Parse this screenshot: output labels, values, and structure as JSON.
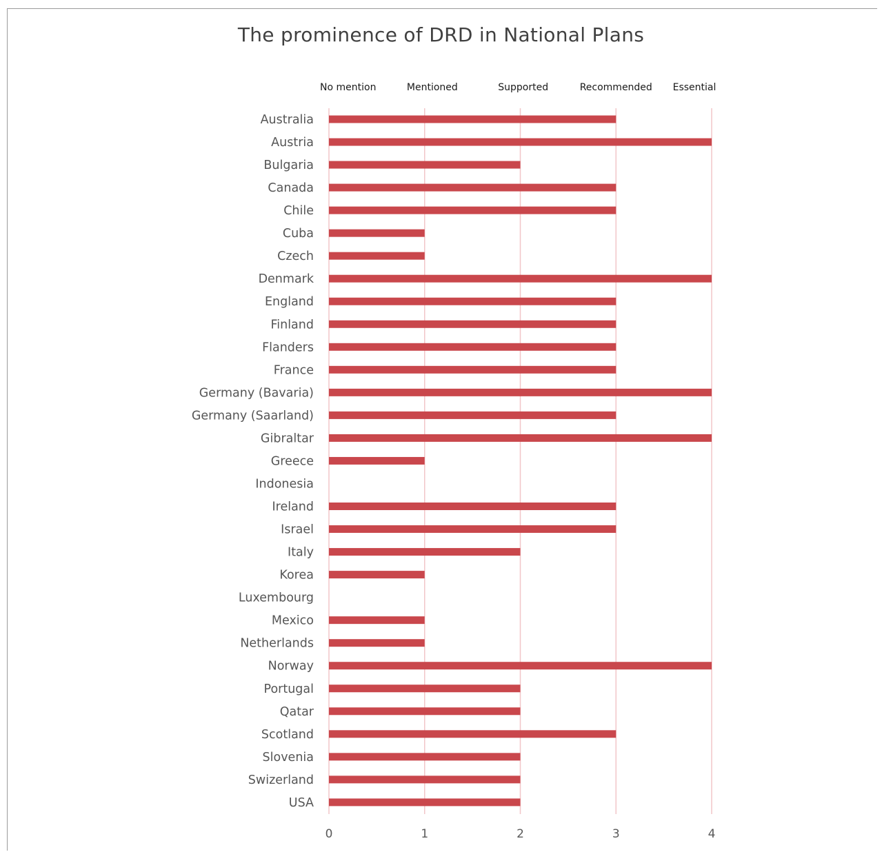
{
  "chart_data": {
    "type": "bar",
    "orientation": "horizontal",
    "title": "The prominence of DRD in National Plans",
    "xlabel": "",
    "ylabel": "",
    "xlim": [
      0,
      4
    ],
    "x_ticks": [
      "0",
      "1",
      "2",
      "3",
      "4"
    ],
    "level_labels": [
      "No mention",
      "Mentioned",
      "Supported",
      "Recommended",
      "Essential"
    ],
    "categories": [
      "Australia",
      "Austria",
      "Bulgaria",
      "Canada",
      "Chile",
      "Cuba",
      "Czech",
      "Denmark",
      "England",
      "Finland",
      "Flanders",
      "France",
      "Germany (Bavaria)",
      "Germany (Saarland)",
      "Gibraltar",
      "Greece",
      "Indonesia",
      "Ireland",
      "Israel",
      "Italy",
      "Korea",
      "Luxembourg",
      "Mexico",
      "Netherlands",
      "Norway",
      "Portugal",
      "Qatar",
      "Scotland",
      "Slovenia",
      "Swizerland",
      "USA"
    ],
    "values": [
      3,
      4,
      2,
      3,
      3,
      1,
      1,
      4,
      3,
      3,
      3,
      3,
      4,
      3,
      4,
      1,
      0,
      3,
      3,
      2,
      1,
      0,
      1,
      1,
      4,
      2,
      2,
      3,
      2,
      2,
      2
    ],
    "grid": "vertical",
    "legend": "none",
    "colors": {
      "bar": "#C9474C",
      "gridline": "#F2C6C8",
      "title": "#404040",
      "category_text": "#555555",
      "tick_text": "#595959",
      "level_text": "#1a1a1a"
    }
  }
}
